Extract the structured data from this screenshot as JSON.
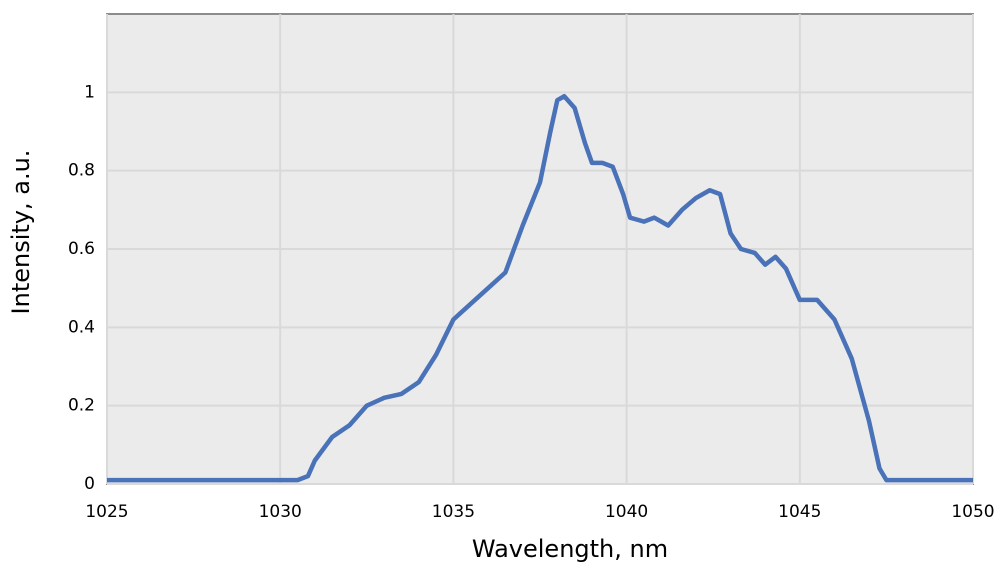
{
  "chart_data": {
    "type": "line",
    "xlabel": "Wavelength, nm",
    "ylabel": "Intensity, a.u.",
    "x": [
      1025,
      1026,
      1027,
      1028,
      1029,
      1030,
      1030.5,
      1030.8,
      1031,
      1031.5,
      1032,
      1032.5,
      1033,
      1033.5,
      1034,
      1034.5,
      1035,
      1035.5,
      1036,
      1036.5,
      1037,
      1037.5,
      1037.8,
      1038,
      1038.2,
      1038.5,
      1038.8,
      1039,
      1039.3,
      1039.6,
      1039.9,
      1040.1,
      1040.5,
      1040.8,
      1041.2,
      1041.6,
      1042,
      1042.4,
      1042.7,
      1043,
      1043.3,
      1043.7,
      1044,
      1044.3,
      1044.6,
      1045,
      1045.5,
      1046,
      1046.5,
      1047,
      1047.3,
      1047.5,
      1048,
      1049,
      1050
    ],
    "series": [
      {
        "name": "Intensity",
        "color": "#4a72b8",
        "values": [
          0.01,
          0.01,
          0.01,
          0.01,
          0.01,
          0.01,
          0.01,
          0.02,
          0.06,
          0.12,
          0.15,
          0.2,
          0.22,
          0.23,
          0.26,
          0.33,
          0.42,
          0.46,
          0.5,
          0.54,
          0.66,
          0.77,
          0.9,
          0.98,
          0.99,
          0.96,
          0.87,
          0.82,
          0.82,
          0.81,
          0.74,
          0.68,
          0.67,
          0.68,
          0.66,
          0.7,
          0.73,
          0.75,
          0.74,
          0.64,
          0.6,
          0.59,
          0.56,
          0.58,
          0.55,
          0.47,
          0.47,
          0.42,
          0.32,
          0.16,
          0.04,
          0.01,
          0.01,
          0.01,
          0.01
        ]
      }
    ],
    "xlim": [
      1025,
      1050
    ],
    "xticks": [
      1025,
      1030,
      1035,
      1040,
      1045,
      1050
    ],
    "ylim": [
      0,
      1.2
    ],
    "yticks": [
      0,
      0.2,
      0.4,
      0.6,
      0.8,
      1
    ],
    "grid": true
  }
}
